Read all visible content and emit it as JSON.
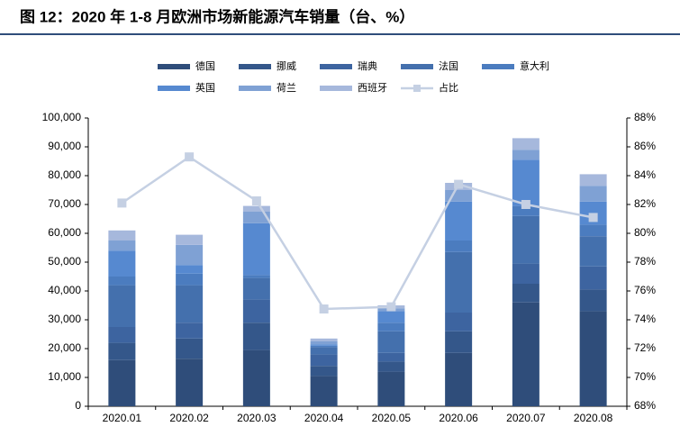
{
  "chart_data": {
    "type": "bar",
    "stacked": true,
    "title": "图 12：2020 年 1-8 月欧洲市场新能源汽车销量（台、%）",
    "categories": [
      "2020.01",
      "2020.02",
      "2020.03",
      "2020.04",
      "2020.05",
      "2020.06",
      "2020.07",
      "2020.08"
    ],
    "series": [
      {
        "name": "德国",
        "color": "#2f4d7a",
        "values": [
          16000,
          16500,
          19500,
          10500,
          12000,
          18500,
          36000,
          33000
        ]
      },
      {
        "name": "挪威",
        "color": "#34578a",
        "values": [
          6000,
          7000,
          9500,
          3500,
          3500,
          7500,
          6500,
          7500
        ]
      },
      {
        "name": "瑞典",
        "color": "#3d64a0",
        "values": [
          5500,
          5500,
          8000,
          4000,
          3000,
          6500,
          7000,
          8000
        ]
      },
      {
        "name": "法国",
        "color": "#4470ad",
        "values": [
          14500,
          13000,
          7500,
          2500,
          7500,
          21000,
          16500,
          10500
        ]
      },
      {
        "name": "意大利",
        "color": "#4b7cbf",
        "values": [
          3000,
          4000,
          1000,
          500,
          3000,
          4000,
          3500,
          4000
        ]
      },
      {
        "name": "英国",
        "color": "#5689d0",
        "values": [
          9000,
          3000,
          18000,
          500,
          4000,
          13500,
          16000,
          8000
        ]
      },
      {
        "name": "荷兰",
        "color": "#7fa1d4",
        "values": [
          3500,
          7000,
          4000,
          1000,
          1000,
          4000,
          3500,
          5500
        ]
      },
      {
        "name": "西班牙",
        "color": "#a6b8dc",
        "values": [
          3500,
          3500,
          2000,
          1000,
          1000,
          2500,
          4000,
          4000
        ]
      },
      {
        "name": "占比",
        "color": "#c5d0e3",
        "axis": "y2",
        "values": [
          82.1,
          85.3,
          82.25,
          74.75,
          74.9,
          83.4,
          82.0,
          81.1
        ]
      }
    ],
    "ylim": [
      0,
      100000
    ],
    "yticks": [
      0,
      {
        "value": 10000,
        "label": "10,000"
      },
      {
        "value": 20000,
        "label": "20,000"
      },
      {
        "value": 30000,
        "label": "30,000"
      },
      {
        "value": 40000,
        "label": "40,000"
      },
      {
        "value": 50000,
        "label": "50,000"
      },
      {
        "value": 60000,
        "label": "60,000"
      },
      {
        "value": 70000,
        "label": "70,000"
      },
      {
        "value": 80000,
        "label": "80,000"
      },
      {
        "value": 90000,
        "label": "90,000"
      },
      {
        "value": 100000,
        "label": "100,000"
      }
    ],
    "y2lim": [
      68,
      88
    ],
    "y2ticks": [
      {
        "value": 68,
        "label": "68%"
      },
      {
        "value": 70,
        "label": "70%"
      },
      {
        "value": 72,
        "label": "72%"
      },
      {
        "value": 74,
        "label": "74%"
      },
      {
        "value": 76,
        "label": "76%"
      },
      {
        "value": 78,
        "label": "78%"
      },
      {
        "value": 80,
        "label": "80%"
      },
      {
        "value": 82,
        "label": "82%"
      },
      {
        "value": 84,
        "label": "84%"
      },
      {
        "value": 86,
        "label": "86%"
      },
      {
        "value": 88,
        "label": "88%"
      }
    ]
  }
}
